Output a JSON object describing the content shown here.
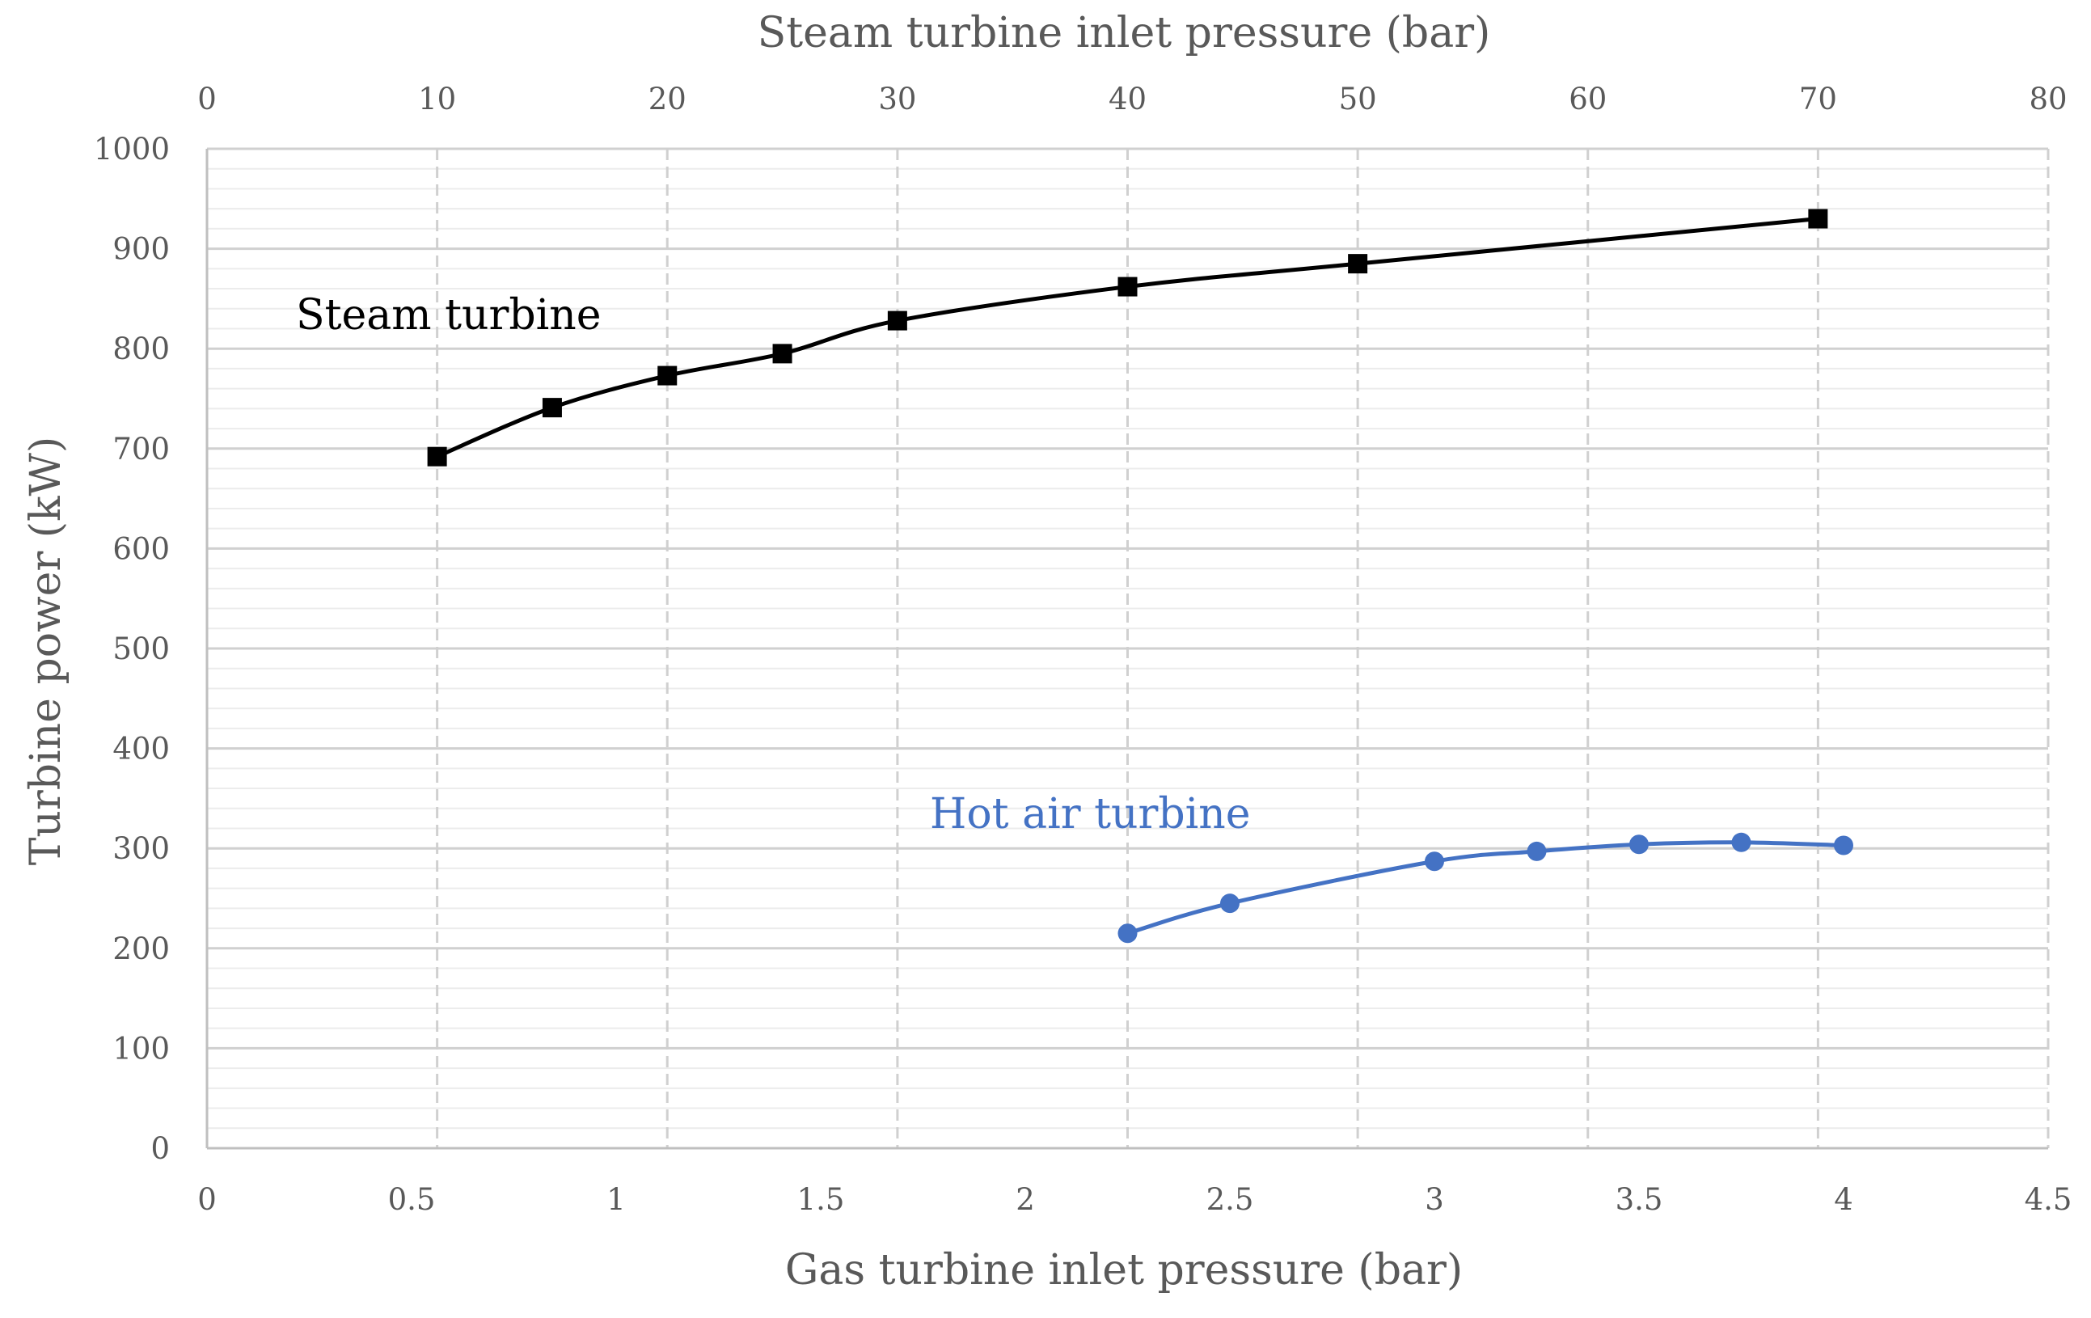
{
  "chart_data": {
    "type": "line",
    "xlabel_top": "Steam turbine inlet pressure (bar)",
    "xlabel_bottom": "Gas turbine inlet pressure (bar)",
    "ylabel": "Turbine power  (kW)",
    "x_top": {
      "range": [
        0,
        80
      ],
      "ticks": [
        0,
        10,
        20,
        30,
        40,
        50,
        60,
        70,
        80
      ],
      "tick_labels": [
        "0",
        "10",
        "20",
        "30",
        "40",
        "50",
        "60",
        "70",
        "80"
      ]
    },
    "x_bottom": {
      "range": [
        0,
        4.5
      ],
      "ticks": [
        0,
        0.5,
        1,
        1.5,
        2,
        2.5,
        3,
        3.5,
        4,
        4.5
      ],
      "tick_labels": [
        "0",
        "0.5",
        "1",
        "1.5",
        "2",
        "2.5",
        "3",
        "3.5",
        "4",
        "4.5"
      ]
    },
    "y": {
      "range": [
        0,
        1000
      ],
      "major_ticks": [
        0,
        100,
        200,
        300,
        400,
        500,
        600,
        700,
        800,
        900,
        1000
      ],
      "tick_labels": [
        "0",
        "100",
        "200",
        "300",
        "400",
        "500",
        "600",
        "700",
        "800",
        "900",
        "1000"
      ],
      "minor_step": 20
    },
    "grid": true,
    "series": [
      {
        "name": "Steam turbine",
        "label": "Steam turbine",
        "axis": "top",
        "marker": "square",
        "color": "#000000",
        "x": [
          10,
          15,
          20,
          25,
          30,
          40,
          50,
          70
        ],
        "y": [
          692,
          741,
          773,
          795,
          828,
          862,
          885,
          930
        ]
      },
      {
        "name": "Hot air turbine",
        "label": "Hot air turbine",
        "axis": "bottom",
        "marker": "circle",
        "color": "#4472C4",
        "x": [
          2.25,
          2.5,
          3.0,
          3.25,
          3.5,
          3.75,
          4.0
        ],
        "y": [
          215,
          245,
          287,
          297,
          304,
          306,
          303
        ]
      }
    ]
  }
}
